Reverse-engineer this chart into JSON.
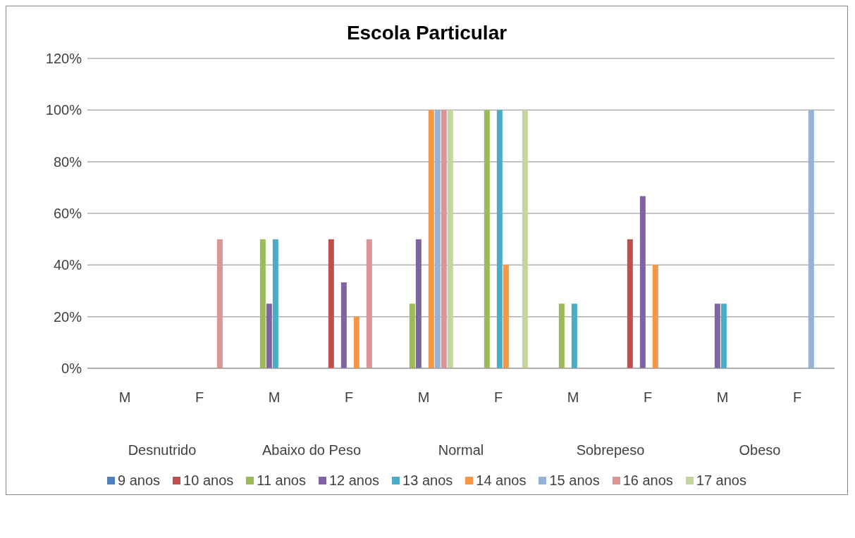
{
  "chart_data": {
    "type": "bar",
    "title": "Escola Particular",
    "categories": [
      "M",
      "F",
      "M",
      "F",
      "M",
      "F",
      "M",
      "F",
      "M",
      "F"
    ],
    "annotations": [
      "Desnutrido",
      "Abaixo do Peso",
      "Normal",
      "Sobrepeso",
      "Obeso"
    ],
    "series": [
      {
        "name": "9 anos",
        "color": "#4f81bd",
        "values": [
          null,
          null,
          null,
          null,
          null,
          null,
          null,
          null,
          null,
          null
        ]
      },
      {
        "name": "10 anos",
        "color": "#c0504d",
        "values": [
          null,
          null,
          null,
          50,
          null,
          null,
          null,
          50,
          null,
          null
        ]
      },
      {
        "name": "11 anos",
        "color": "#9bbb59",
        "values": [
          null,
          null,
          50,
          null,
          25,
          100,
          25,
          null,
          null,
          null
        ]
      },
      {
        "name": "12 anos",
        "color": "#8064a2",
        "values": [
          null,
          null,
          25,
          33.3,
          50,
          null,
          null,
          66.7,
          25,
          null
        ]
      },
      {
        "name": "13 anos",
        "color": "#4bacc6",
        "values": [
          null,
          null,
          50,
          null,
          null,
          100,
          25,
          null,
          25,
          null
        ]
      },
      {
        "name": "14 anos",
        "color": "#f79646",
        "values": [
          null,
          null,
          null,
          20,
          100,
          40,
          null,
          40,
          null,
          null
        ]
      },
      {
        "name": "15 anos",
        "color": "#95b3d7",
        "values": [
          null,
          null,
          null,
          null,
          100,
          null,
          null,
          null,
          null,
          100
        ]
      },
      {
        "name": "16 anos",
        "color": "#d99694",
        "values": [
          null,
          50,
          null,
          50,
          100,
          null,
          null,
          null,
          null,
          null
        ]
      },
      {
        "name": "17 anos",
        "color": "#c3d69b",
        "values": [
          null,
          null,
          null,
          null,
          100,
          100,
          null,
          null,
          null,
          null
        ]
      }
    ],
    "ylim": [
      0,
      120
    ],
    "yticks": [
      {
        "value": 0,
        "label": "0%"
      },
      {
        "value": 20,
        "label": "20%"
      },
      {
        "value": 40,
        "label": "40%"
      },
      {
        "value": 60,
        "label": "60%"
      },
      {
        "value": 80,
        "label": "80%"
      },
      {
        "value": 100,
        "label": "100%"
      },
      {
        "value": 120,
        "label": "120%"
      }
    ],
    "grid": "y",
    "legend": "bottom"
  }
}
